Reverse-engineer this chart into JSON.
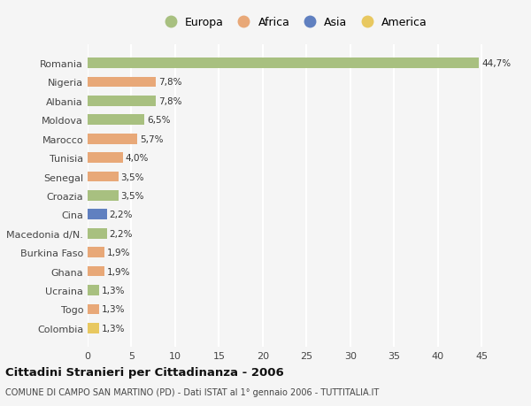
{
  "countries": [
    "Romania",
    "Nigeria",
    "Albania",
    "Moldova",
    "Marocco",
    "Tunisia",
    "Senegal",
    "Croazia",
    "Cina",
    "Macedonia d/N.",
    "Burkina Faso",
    "Ghana",
    "Ucraina",
    "Togo",
    "Colombia"
  ],
  "values": [
    44.7,
    7.8,
    7.8,
    6.5,
    5.7,
    4.0,
    3.5,
    3.5,
    2.2,
    2.2,
    1.9,
    1.9,
    1.3,
    1.3,
    1.3
  ],
  "labels": [
    "44,7%",
    "7,8%",
    "7,8%",
    "6,5%",
    "5,7%",
    "4,0%",
    "3,5%",
    "3,5%",
    "2,2%",
    "2,2%",
    "1,9%",
    "1,9%",
    "1,3%",
    "1,3%",
    "1,3%"
  ],
  "continents": [
    "Europa",
    "Africa",
    "Europa",
    "Europa",
    "Africa",
    "Africa",
    "Africa",
    "Europa",
    "Asia",
    "Europa",
    "Africa",
    "Africa",
    "Europa",
    "Africa",
    "America"
  ],
  "colors": {
    "Europa": "#a8c080",
    "Africa": "#e8a878",
    "Asia": "#6080c0",
    "America": "#e8c860"
  },
  "legend_order": [
    "Europa",
    "Africa",
    "Asia",
    "America"
  ],
  "title": "Cittadini Stranieri per Cittadinanza - 2006",
  "subtitle": "COMUNE DI CAMPO SAN MARTINO (PD) - Dati ISTAT al 1° gennaio 2006 - TUTTITALIA.IT",
  "xlim": [
    0,
    47
  ],
  "xticks": [
    0,
    5,
    10,
    15,
    20,
    25,
    30,
    35,
    40,
    45
  ],
  "background_color": "#f5f5f5",
  "grid_color": "#ffffff",
  "bar_height": 0.55
}
